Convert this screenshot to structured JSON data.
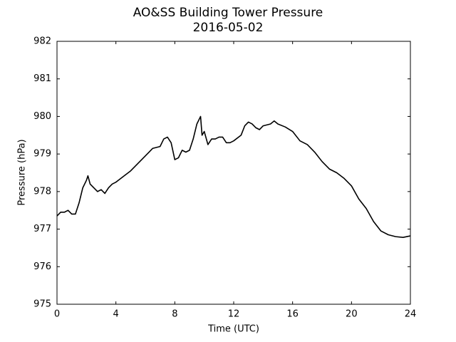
{
  "chart_data": {
    "type": "line",
    "title": "AO&SS Building Tower Pressure",
    "subtitle": "2016-05-02",
    "x_label": "Time (UTC)",
    "y_label": "Pressure (hPa)",
    "x": [
      0,
      0.25,
      0.5,
      0.75,
      1.0,
      1.25,
      1.5,
      1.75,
      2.0,
      2.1,
      2.25,
      2.5,
      2.75,
      3.0,
      3.25,
      3.5,
      3.75,
      4.0,
      4.5,
      5.0,
      5.5,
      6.0,
      6.25,
      6.5,
      7.0,
      7.25,
      7.5,
      7.75,
      8.0,
      8.25,
      8.5,
      8.75,
      9.0,
      9.25,
      9.5,
      9.75,
      9.85,
      10.0,
      10.25,
      10.5,
      10.75,
      11.0,
      11.25,
      11.5,
      11.75,
      12.0,
      12.5,
      12.75,
      13.0,
      13.25,
      13.5,
      13.75,
      14.0,
      14.5,
      14.75,
      15.0,
      15.5,
      16.0,
      16.5,
      17.0,
      17.5,
      18.0,
      18.5,
      19.0,
      19.5,
      20.0,
      20.5,
      21.0,
      21.5,
      22.0,
      22.5,
      23.0,
      23.5,
      24.0
    ],
    "series": [
      {
        "name": "Pressure",
        "color": "#000000",
        "values": [
          977.35,
          977.45,
          977.45,
          977.5,
          977.4,
          977.4,
          977.7,
          978.1,
          978.3,
          978.42,
          978.2,
          978.1,
          978.0,
          978.05,
          977.95,
          978.1,
          978.2,
          978.25,
          978.4,
          978.55,
          978.75,
          978.95,
          979.05,
          979.15,
          979.2,
          979.4,
          979.45,
          979.3,
          978.85,
          978.9,
          979.1,
          979.05,
          979.1,
          979.4,
          979.8,
          980.0,
          979.5,
          979.6,
          979.25,
          979.4,
          979.4,
          979.45,
          979.45,
          979.3,
          979.3,
          979.35,
          979.5,
          979.75,
          979.85,
          979.8,
          979.7,
          979.65,
          979.75,
          979.8,
          979.88,
          979.8,
          979.72,
          979.6,
          979.35,
          979.25,
          979.05,
          978.8,
          978.6,
          978.5,
          978.35,
          978.15,
          977.8,
          977.55,
          977.2,
          976.95,
          976.85,
          976.8,
          976.78,
          976.82
        ]
      }
    ],
    "xlim": [
      0,
      24
    ],
    "xticks": [
      0,
      4,
      8,
      12,
      16,
      20,
      24
    ],
    "ylim": [
      975,
      982
    ],
    "yticks": [
      975,
      976,
      977,
      978,
      979,
      980,
      981,
      982
    ],
    "grid": false
  }
}
